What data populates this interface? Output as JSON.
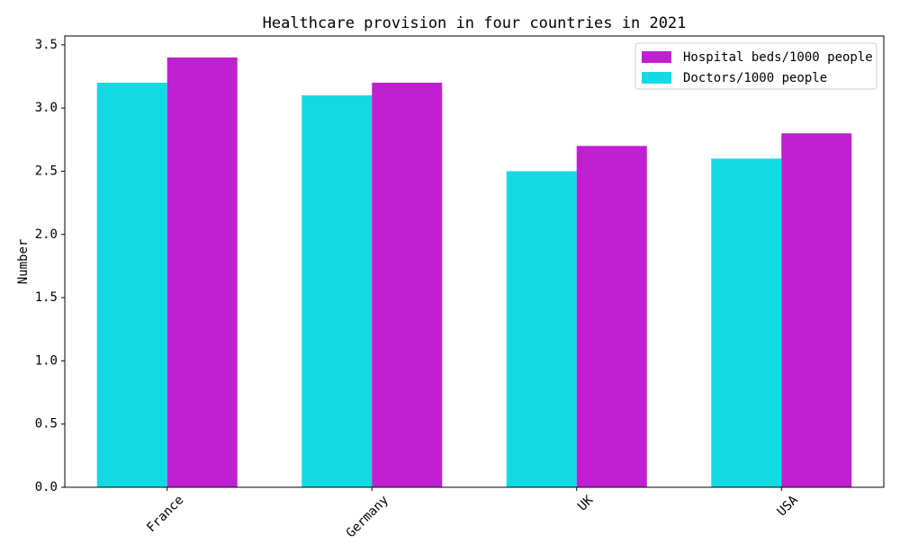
{
  "chart_data": {
    "type": "bar",
    "title": "Healthcare provision in four countries in 2021",
    "xlabel": "",
    "ylabel": "Number",
    "categories": [
      "France",
      "Germany",
      "UK",
      "USA"
    ],
    "series": [
      {
        "name": "Doctors/1000 people",
        "values": [
          3.2,
          3.1,
          2.5,
          2.6
        ],
        "color": "#13dae2"
      },
      {
        "name": "Hospital beds/1000 people",
        "values": [
          3.4,
          3.2,
          2.7,
          2.8
        ],
        "color": "#c020d0"
      }
    ],
    "ylim": [
      0,
      3.57
    ],
    "yticks": [
      "0.0",
      "0.5",
      "1.0",
      "1.5",
      "2.0",
      "2.5",
      "3.0",
      "3.5"
    ],
    "legend_order": [
      "Hospital beds/1000 people",
      "Doctors/1000 people"
    ],
    "legend_position": "top-right",
    "grid": false
  }
}
